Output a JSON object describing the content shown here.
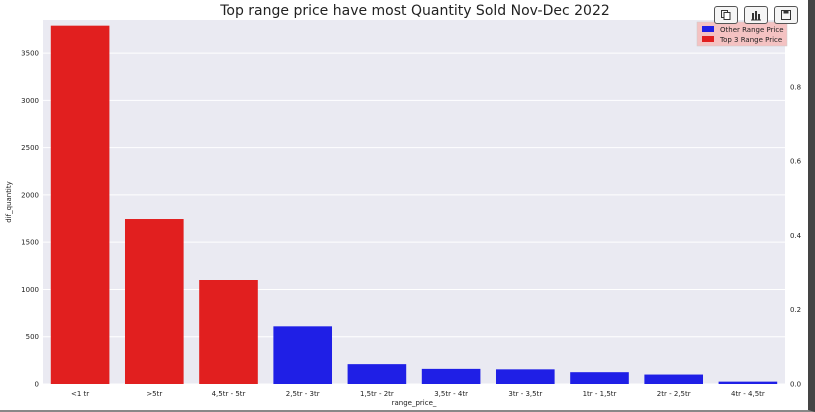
{
  "chart_data": {
    "type": "bar",
    "title": "Top range price have most Quantity Sold Nov-Dec 2022",
    "xlabel": "range_price_",
    "ylabel": "dif_quantity",
    "categories": [
      "<1 tr",
      ">5tr",
      "4,5tr - 5tr",
      "2,5tr - 3tr",
      "1,5tr - 2tr",
      "3,5tr - 4tr",
      "3tr - 3,5tr",
      "1tr - 1,5tr",
      "2tr - 2,5tr",
      "4tr - 4,5tr"
    ],
    "values": [
      3790,
      1745,
      1100,
      610,
      210,
      160,
      155,
      125,
      100,
      25
    ],
    "bar_groups": [
      "Top 3 Range Price",
      "Top 3 Range Price",
      "Top 3 Range Price",
      "Other Range Price",
      "Other Range Price",
      "Other Range Price",
      "Other Range Price",
      "Other Range Price",
      "Other Range Price",
      "Other Range Price"
    ],
    "ylim": [
      0,
      3850
    ],
    "yticks": [
      "0",
      "500",
      "1000",
      "1500",
      "2000",
      "2500",
      "3000",
      "3500"
    ],
    "y2lim": [
      0,
      0.98
    ],
    "y2ticks": [
      "0.0",
      "0.2",
      "0.4",
      "0.6",
      "0.8"
    ],
    "legend": {
      "placement": "top-right",
      "entries": [
        {
          "label": "Other Range Price",
          "color": "#1f1fe6"
        },
        {
          "label": "Top 3 Range Price",
          "color": "#e11f1f"
        }
      ]
    },
    "colors": {
      "Top 3 Range Price": "#e11f1f",
      "Other Range Price": "#1f1fe6",
      "background": "#eaeaf2",
      "grid": "#ffffff"
    },
    "grid": true
  },
  "toolbar": {
    "icons": [
      "copy-icon",
      "bar-chart-icon",
      "save-icon"
    ]
  }
}
